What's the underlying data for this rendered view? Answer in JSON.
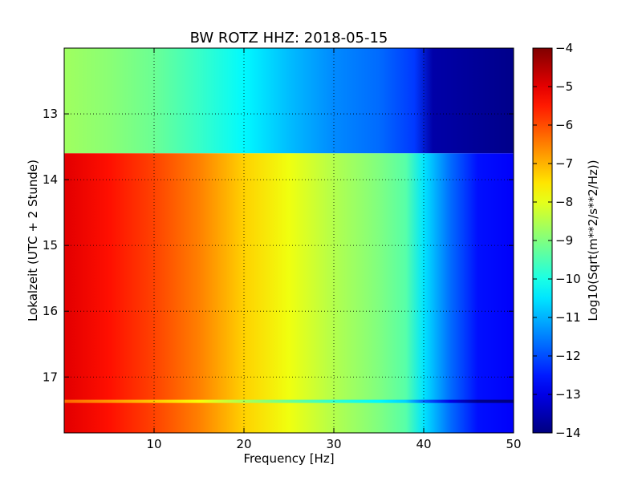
{
  "chart_data": {
    "type": "heatmap",
    "title": "BW ROTZ HHZ: 2018-05-15",
    "xlabel": "Frequency [Hz]",
    "ylabel": "Lokalzeit (UTC + 2 Stunde)",
    "xlim": [
      0,
      50
    ],
    "ylim": [
      12.0,
      17.85
    ],
    "y_inverted": true,
    "x_ticks": [
      10,
      20,
      30,
      40,
      50
    ],
    "y_ticks": [
      13,
      14,
      15,
      16,
      17
    ],
    "grid": true,
    "colormap": "jet",
    "colorbar": {
      "label": "Log10(Sqrt(m**2/s**2/Hz))",
      "range": [
        -14,
        -4
      ],
      "ticks": [
        -4,
        -5,
        -6,
        -7,
        -8,
        -9,
        -10,
        -11,
        -12,
        -13,
        -14
      ]
    },
    "segments": [
      {
        "time_range": [
          12.0,
          13.6
        ],
        "frequency_profile": [
          {
            "f": 0.5,
            "v": -8.7
          },
          {
            "f": 5,
            "v": -8.9
          },
          {
            "f": 10,
            "v": -9.2
          },
          {
            "f": 15,
            "v": -9.7
          },
          {
            "f": 20,
            "v": -10.3
          },
          {
            "f": 25,
            "v": -10.9
          },
          {
            "f": 30,
            "v": -11.4
          },
          {
            "f": 35,
            "v": -11.7
          },
          {
            "f": 39,
            "v": -12.2
          },
          {
            "f": 41,
            "v": -13.6
          },
          {
            "f": 50,
            "v": -13.9
          }
        ]
      },
      {
        "time_range": [
          13.6,
          17.85
        ],
        "frequency_profile": [
          {
            "f": 0.5,
            "v": -5.0
          },
          {
            "f": 5,
            "v": -5.4
          },
          {
            "f": 10,
            "v": -5.9
          },
          {
            "f": 15,
            "v": -6.5
          },
          {
            "f": 20,
            "v": -7.3
          },
          {
            "f": 25,
            "v": -7.9
          },
          {
            "f": 30,
            "v": -8.5
          },
          {
            "f": 35,
            "v": -9.0
          },
          {
            "f": 38,
            "v": -9.4
          },
          {
            "f": 40,
            "v": -10.5
          },
          {
            "f": 43,
            "v": -11.7
          },
          {
            "f": 46,
            "v": -12.6
          },
          {
            "f": 50,
            "v": -12.8
          }
        ]
      }
    ],
    "anomalies": [
      {
        "time": 17.37,
        "delta": -1.3
      }
    ]
  }
}
